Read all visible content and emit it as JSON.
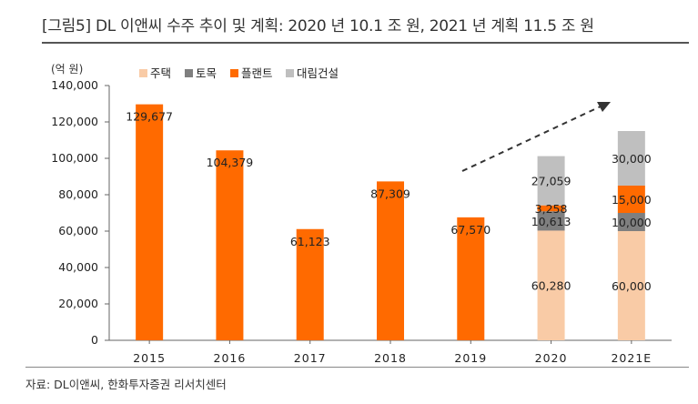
{
  "title": "[그림5]   DL 이앤씨 수주 추이 및 계획: 2020 년 10.1 조 원, 2021 년 계획 11.5 조 원",
  "source": "자료: DL이앤씨, 한화투자증권 리서치센터",
  "chart_data": {
    "type": "bar",
    "stacked": true,
    "unit_label": "(억 원)",
    "categories": [
      "2015",
      "2016",
      "2017",
      "2018",
      "2019",
      "2020",
      "2021E"
    ],
    "ylim": [
      0,
      140000
    ],
    "yticks": [
      "0",
      "20,000",
      "40,000",
      "60,000",
      "80,000",
      "100,000",
      "120,000",
      "140,000"
    ],
    "ytick_values": [
      0,
      20000,
      40000,
      60000,
      80000,
      100000,
      120000,
      140000
    ],
    "grid": false,
    "legend_position": "top",
    "series": [
      {
        "name": "주택",
        "color": "#f9cba6",
        "values": [
          null,
          null,
          null,
          null,
          null,
          60280,
          60000
        ],
        "labels": [
          "",
          "",
          "",
          "",
          "",
          "60,280",
          "60,000"
        ]
      },
      {
        "name": "토목",
        "color": "#7f7f7f",
        "values": [
          null,
          null,
          null,
          null,
          null,
          10613,
          10000
        ],
        "labels": [
          "",
          "",
          "",
          "",
          "",
          "10,613",
          "10,000"
        ]
      },
      {
        "name": "플랜트",
        "color": "#ff6a00",
        "values": [
          129677,
          104379,
          61123,
          87309,
          67570,
          3258,
          15000
        ],
        "labels": [
          "129,677",
          "104,379",
          "61,123",
          "87,309",
          "67,570",
          "3,258",
          "15,000"
        ]
      },
      {
        "name": "대림건설",
        "color": "#bfbfbf",
        "values": [
          null,
          null,
          null,
          null,
          null,
          27059,
          30000
        ],
        "labels": [
          "",
          "",
          "",
          "",
          "",
          "27,059",
          "30,000"
        ]
      }
    ]
  }
}
